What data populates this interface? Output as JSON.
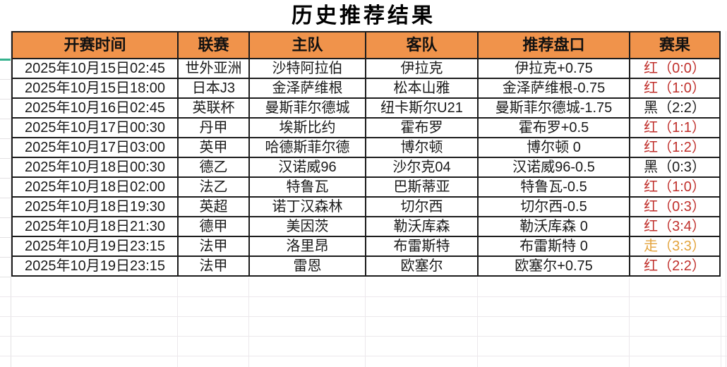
{
  "title": "历史推荐结果",
  "table": {
    "headers": [
      "开赛时间",
      "联赛",
      "主队",
      "客队",
      "推荐盘口",
      "赛果"
    ],
    "rows": [
      {
        "time": "2025年10月15日02:45",
        "league": "世外亚洲",
        "home": "沙特阿拉伯",
        "away": "伊拉克",
        "handicap": "伊拉克+0.75",
        "result": "红（0:0）",
        "result_color": "red"
      },
      {
        "time": "2025年10月15日18:00",
        "league": "日本J3",
        "home": "金泽萨维根",
        "away": "松本山雅",
        "handicap": "金泽萨维根-0.75",
        "result": "红（1:0）",
        "result_color": "red"
      },
      {
        "time": "2025年10月16日02:45",
        "league": "英联杯",
        "home": "曼斯菲尔德城",
        "away": "纽卡斯尔U21",
        "handicap": "曼斯菲尔德城-1.75",
        "result": "黑（2:2）",
        "result_color": "black"
      },
      {
        "time": "2025年10月17日00:30",
        "league": "丹甲",
        "home": "埃斯比约",
        "away": "霍布罗",
        "handicap": "霍布罗+0.5",
        "result": "红（1:1）",
        "result_color": "red"
      },
      {
        "time": "2025年10月17日03:00",
        "league": "英甲",
        "home": "哈德斯菲尔德",
        "away": "博尔顿",
        "handicap": "博尔顿 0",
        "result": "红（1:2）",
        "result_color": "red"
      },
      {
        "time": "2025年10月18日00:30",
        "league": "德乙",
        "home": "汉诺威96",
        "away": "沙尔克04",
        "handicap": "汉诺威96-0.5",
        "result": "黑（0:3）",
        "result_color": "black"
      },
      {
        "time": "2025年10月18日02:00",
        "league": "法乙",
        "home": "特鲁瓦",
        "away": "巴斯蒂亚",
        "handicap": "特鲁瓦-0.5",
        "result": "红（1:0）",
        "result_color": "red"
      },
      {
        "time": "2025年10月18日19:30",
        "league": "英超",
        "home": "诺丁汉森林",
        "away": "切尔西",
        "handicap": "切尔西-0.5",
        "result": "红（0:3）",
        "result_color": "red"
      },
      {
        "time": "2025年10月18日21:30",
        "league": "德甲",
        "home": "美因茨",
        "away": "勒沃库森",
        "handicap": "勒沃库森 0",
        "result": "红（3:4）",
        "result_color": "red"
      },
      {
        "time": "2025年10月19日23:15",
        "league": "法甲",
        "home": "洛里昂",
        "away": "布雷斯特",
        "handicap": "布雷斯特 0",
        "result": "走（3:3）",
        "result_color": "gold"
      },
      {
        "time": "2025年10月19日23:15",
        "league": "法甲",
        "home": "雷恩",
        "away": "欧塞尔",
        "handicap": "欧塞尔+0.75",
        "result": "红（2:2）",
        "result_color": "red"
      }
    ]
  },
  "colors": {
    "header_bg": "#F0934B",
    "result_red": "#C0302C",
    "result_black": "#1C1C1C",
    "result_gold": "#E3A33C",
    "accent_green": "#35B28E"
  }
}
